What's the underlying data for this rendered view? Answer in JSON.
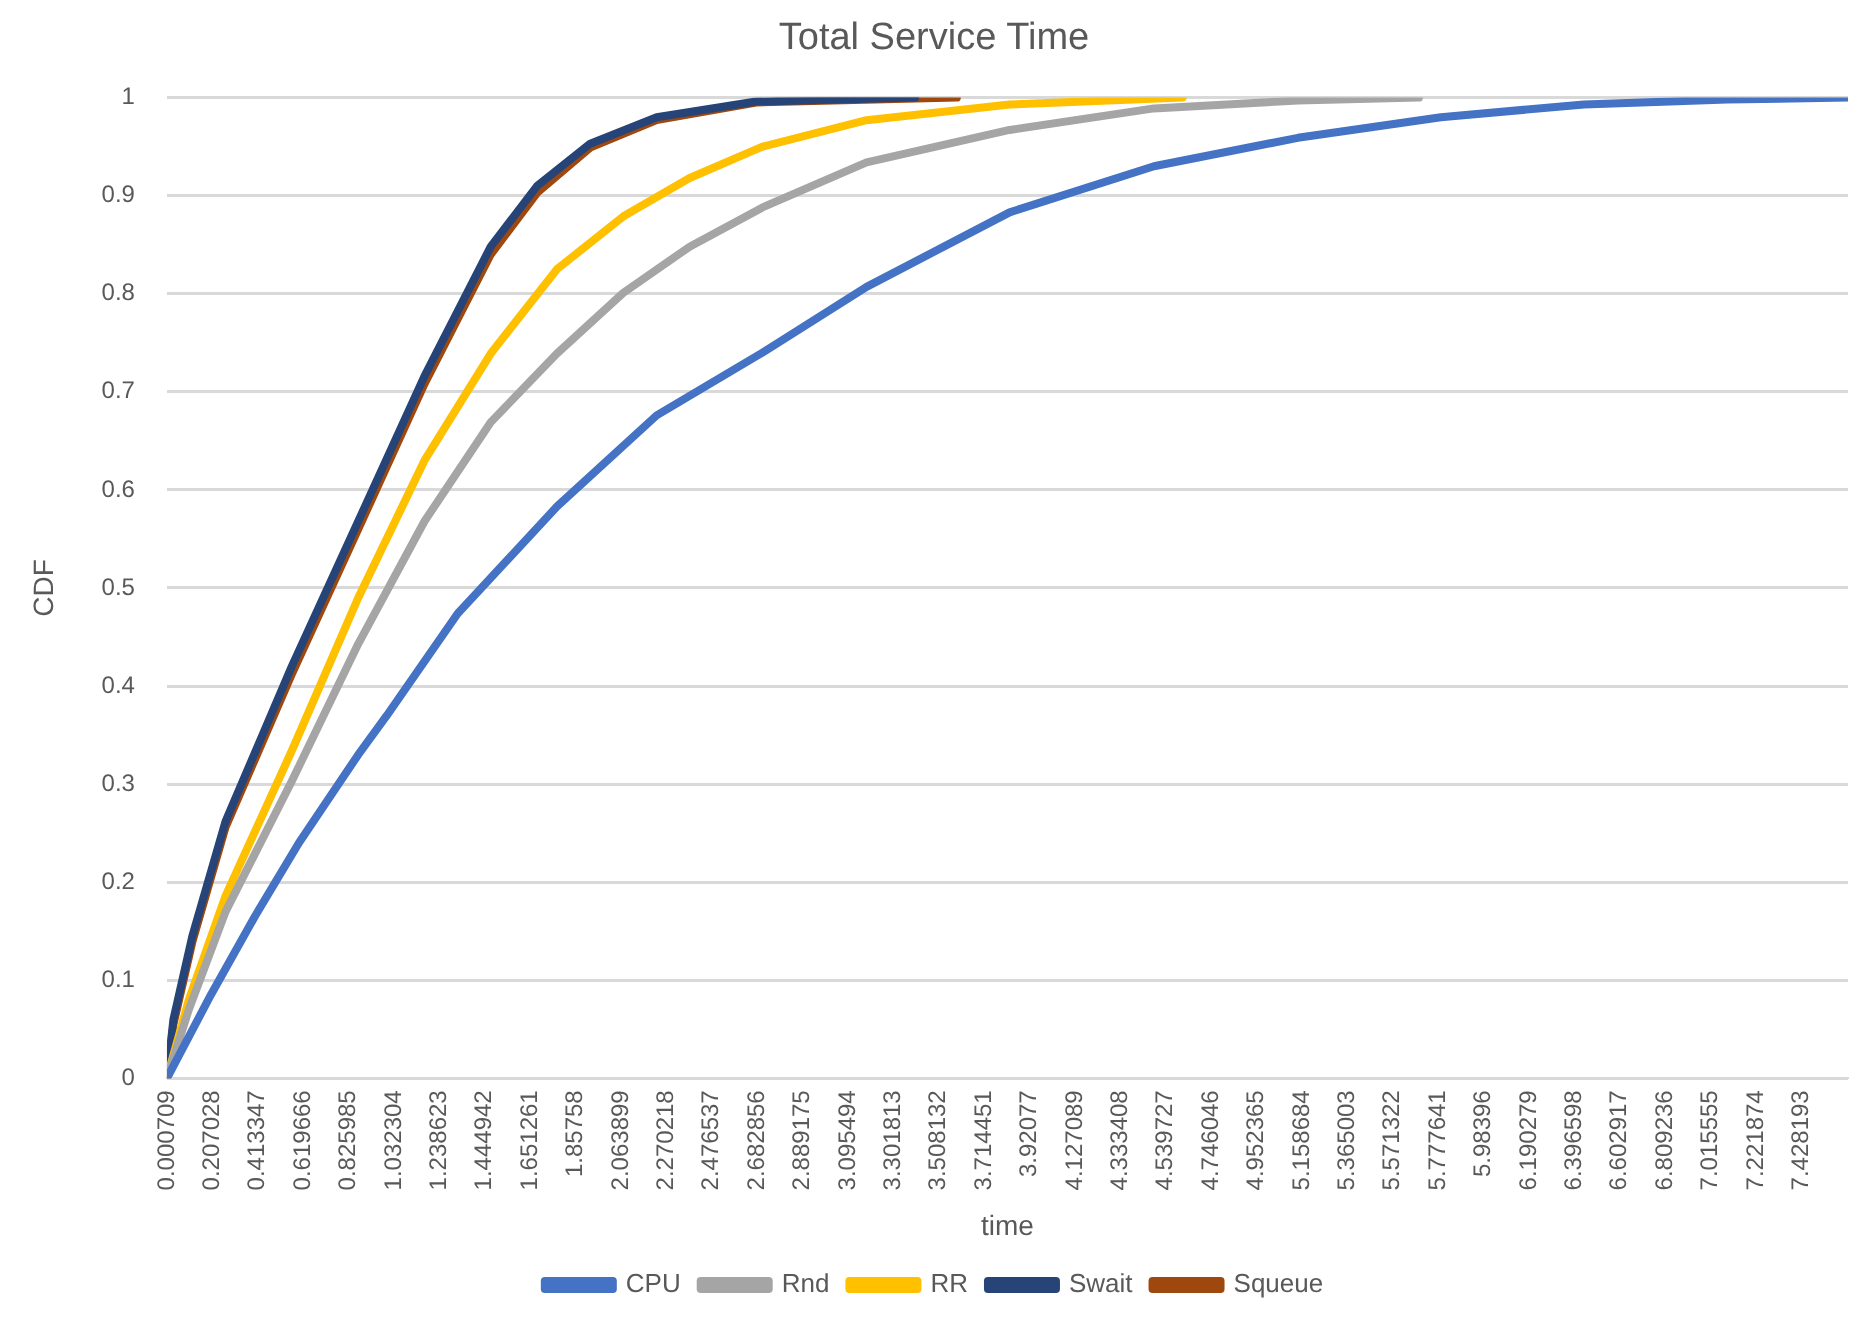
{
  "chart_data": {
    "type": "line",
    "title": "Total Service Time",
    "xlabel": "time",
    "ylabel": "CDF",
    "xlim": [
      0.000709,
      7.64
    ],
    "xticks": [
      0.000709,
      0.207028,
      0.413347,
      0.619666,
      0.825985,
      1.032304,
      1.238623,
      1.444942,
      1.651261,
      1.85758,
      2.063899,
      2.270218,
      2.476537,
      2.682856,
      2.889175,
      3.095494,
      3.301813,
      3.508132,
      3.714451,
      3.92077,
      4.127089,
      4.333408,
      4.539727,
      4.746046,
      4.952365,
      5.158684,
      5.365003,
      5.571322,
      5.777641,
      5.98396,
      6.190279,
      6.396598,
      6.602917,
      6.809236,
      7.015555,
      7.221874,
      7.428193
    ],
    "ylim": [
      0,
      1
    ],
    "yticks": [
      0,
      0.1,
      0.2,
      0.3,
      0.4,
      0.5,
      0.6,
      0.7,
      0.8,
      0.9,
      1
    ],
    "grid": "y",
    "legend": "bottom",
    "marker": "none",
    "series": [
      {
        "name": "CPU",
        "color": "#4472c4",
        "x": [
          0.000709,
          0.2,
          0.4,
          0.6,
          0.87,
          1.0,
          1.322,
          1.773,
          2.226,
          2.707,
          3.18,
          3.83,
          4.486,
          5.14,
          5.79,
          6.44,
          7.09,
          7.64
        ],
        "values": [
          0,
          0.085,
          0.165,
          0.24,
          0.33,
          0.37,
          0.474,
          0.583,
          0.676,
          0.74,
          0.807,
          0.883,
          0.93,
          0.959,
          0.98,
          0.993,
          0.998,
          1
        ]
      },
      {
        "name": "Rnd",
        "color": "#a5a5a5",
        "x": [
          0.000709,
          0.1,
          0.267,
          0.568,
          0.87,
          1.171,
          1.472,
          1.773,
          2.075,
          2.376,
          2.707,
          3.18,
          3.83,
          4.486,
          5.14,
          5.69
        ],
        "values": [
          0,
          0.07,
          0.17,
          0.303,
          0.443,
          0.568,
          0.669,
          0.739,
          0.801,
          0.848,
          0.888,
          0.934,
          0.967,
          0.989,
          0.997,
          1
        ]
      },
      {
        "name": "RR",
        "color": "#ffc000",
        "x": [
          0.000709,
          0.1,
          0.267,
          0.568,
          0.87,
          1.171,
          1.472,
          1.773,
          2.075,
          2.376,
          2.707,
          3.18,
          3.83,
          4.616
        ],
        "values": [
          0,
          0.08,
          0.186,
          0.334,
          0.49,
          0.63,
          0.739,
          0.825,
          0.879,
          0.918,
          0.95,
          0.977,
          0.993,
          1
        ]
      },
      {
        "name": "Swait",
        "color": "#264478",
        "x": [
          0.000709,
          0.03,
          0.116,
          0.267,
          0.568,
          0.87,
          1.171,
          1.472,
          1.683,
          1.924,
          2.226,
          2.678,
          3.4
        ],
        "values": [
          0,
          0.06,
          0.145,
          0.262,
          0.42,
          0.568,
          0.716,
          0.848,
          0.91,
          0.953,
          0.98,
          0.996,
          1
        ]
      },
      {
        "name": "Squeue",
        "color": "#9e480e",
        "x": [
          0.000709,
          0.03,
          0.116,
          0.267,
          0.568,
          0.87,
          1.171,
          1.472,
          1.683,
          1.924,
          2.226,
          2.678,
          3.59
        ],
        "values": [
          0,
          0.055,
          0.139,
          0.256,
          0.412,
          0.56,
          0.708,
          0.84,
          0.903,
          0.949,
          0.977,
          0.995,
          1
        ]
      }
    ]
  }
}
